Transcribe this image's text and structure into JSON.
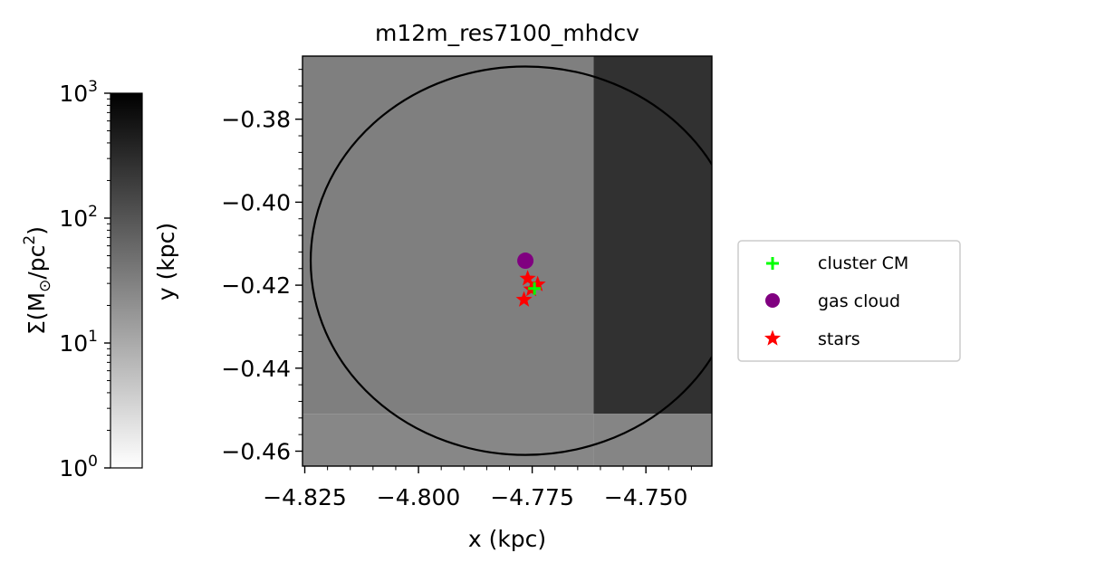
{
  "chart_data": {
    "type": "scatter",
    "title": "m12m_res7100_mhdcv",
    "xlabel": "x (kpc)",
    "ylabel": "y (kpc)",
    "xlim": [
      -4.8255,
      -4.7355
    ],
    "ylim": [
      -0.4636,
      -0.3648
    ],
    "xticks": [
      -4.825,
      -4.8,
      -4.775,
      -4.75
    ],
    "xtick_labels": [
      "−4.825",
      "−4.800",
      "−4.775",
      "−4.750"
    ],
    "yticks": [
      -0.38,
      -0.4,
      -0.42,
      -0.44,
      -0.46
    ],
    "ytick_labels": [
      "−0.38",
      "−0.40",
      "−0.42",
      "−0.44",
      "−0.46"
    ],
    "grid": false,
    "background_cells": [
      {
        "x": [
          -4.8255,
          -4.7615
        ],
        "y": [
          -0.451,
          -0.3648
        ],
        "color": "#7f7f7f"
      },
      {
        "x": [
          -4.7615,
          -4.7355
        ],
        "y": [
          -0.451,
          -0.3648
        ],
        "color": "#313131"
      },
      {
        "x": [
          -4.8255,
          -4.7615
        ],
        "y": [
          -0.4636,
          -0.451
        ],
        "color": "#878787"
      },
      {
        "x": [
          -4.7615,
          -4.7355
        ],
        "y": [
          -0.4636,
          -0.451
        ],
        "color": "#858585"
      }
    ],
    "circle": {
      "center": [
        -4.7765,
        -0.4141
      ],
      "radius_x": 0.0472,
      "radius_y": 0.0468,
      "color": "#000000"
    },
    "series": [
      {
        "name": "cluster CM",
        "marker": "plus",
        "color": "#00ff00",
        "x": [
          -4.7745
        ],
        "y": [
          -0.4208
        ]
      },
      {
        "name": "gas cloud",
        "marker": "circle",
        "color": "#800080",
        "x": [
          -4.7765
        ],
        "y": [
          -0.4141
        ]
      },
      {
        "name": "stars",
        "marker": "star",
        "color": "#ff0000",
        "x": [
          -4.776,
          -4.7738,
          -4.7752,
          -4.7768
        ],
        "y": [
          -0.4184,
          -0.4198,
          -0.421,
          -0.4235
        ]
      }
    ],
    "legend": {
      "placement": "right",
      "entries": [
        "cluster CM",
        "gas cloud",
        "stars"
      ]
    },
    "colorbar": {
      "label_parts": {
        "symbol": "Σ",
        "open": "(M",
        "sub": "⊙",
        "mid": "/pc",
        "sup": "2",
        "close": ")"
      },
      "scale": "log",
      "range": [
        1,
        1000
      ],
      "tick_values": [
        1,
        10,
        100,
        1000
      ],
      "tick_bases": [
        "10",
        "10",
        "10",
        "10"
      ],
      "tick_exponents": [
        "0",
        "1",
        "2",
        "3"
      ],
      "cmap": "gray_r"
    }
  }
}
